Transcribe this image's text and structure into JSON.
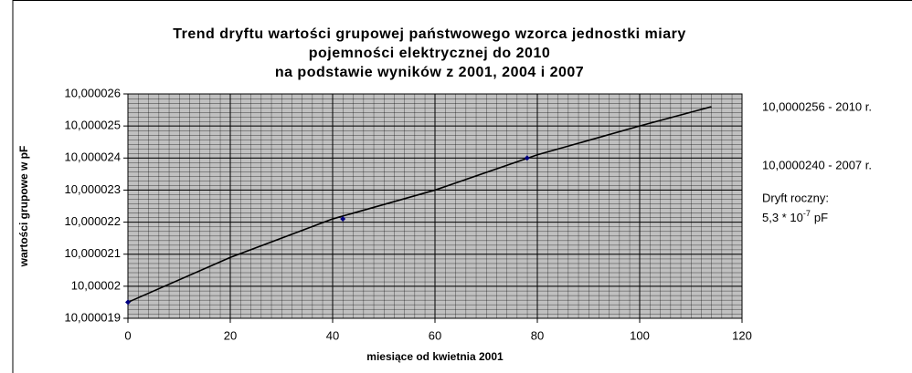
{
  "chart_data": {
    "type": "line",
    "title": [
      "Trend dryftu wartości grupowej państwowego wzorca jednostki miary",
      "pojemności elektrycznej do 2010",
      "na podstawie wyników z 2001, 2004 i 2007"
    ],
    "x_label": "miesiące od kwietnia 2001",
    "y_label": "wartości grupowe w pF",
    "xlim": [
      0,
      120
    ],
    "xticks": [
      0,
      20,
      40,
      60,
      80,
      100,
      120
    ],
    "ylim": [
      10.000019,
      10.000026
    ],
    "yticks": [
      {
        "value": 10.000019,
        "label": "10,000019"
      },
      {
        "value": 10.00002,
        "label": "10,00002"
      },
      {
        "value": 10.000021,
        "label": "10,000021"
      },
      {
        "value": 10.000022,
        "label": "10,000022"
      },
      {
        "value": 10.000023,
        "label": "10,000023"
      },
      {
        "value": 10.000024,
        "label": "10,000024"
      },
      {
        "value": 10.000025,
        "label": "10,000025"
      },
      {
        "value": 10.000026,
        "label": "10,000026"
      }
    ],
    "grid": true,
    "series": [
      {
        "style": "line",
        "color": "#000000",
        "x": [
          0,
          20,
          40,
          60,
          80,
          100,
          114
        ],
        "values": [
          10.0000195,
          10.0000209,
          10.0000221,
          10.000023,
          10.0000241,
          10.000025,
          10.0000256
        ]
      },
      {
        "style": "markers",
        "color": "#000080",
        "x": [
          0,
          42,
          78
        ],
        "values": [
          10.0000195,
          10.0000221,
          10.000024
        ]
      }
    ],
    "annotations": [
      "10,0000256 - 2010 r.",
      "10,0000240 - 2007 r.",
      "Dryft roczny:"
    ],
    "drift": {
      "base": "5,3 * 10",
      "exponent": "-7",
      "unit": "pF"
    }
  }
}
